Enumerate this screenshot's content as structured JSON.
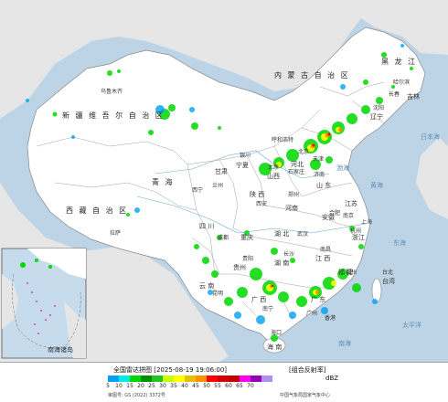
{
  "map": {
    "regions": {
      "heilongjiang": "黑 龙 江",
      "jilin": "吉林",
      "liaoning": "辽宁",
      "neimenggu": "内 蒙 古 自 治 区",
      "xinjiang": "新 疆 维 吾 尔 自 治 区",
      "xizang": "西 藏 自 治 区",
      "qinghai": "青 海",
      "gansu": "甘肃",
      "ningxia": "宁夏",
      "shaanxi": "陕 西",
      "shanxi": "山西",
      "hebei": "河北",
      "shandong": "山 东",
      "henan": "河南",
      "hubei": "湖 北",
      "hunan": "湖 南",
      "sichuan": "四 川",
      "chongqing": "重庆",
      "guizhou": "贵州",
      "yunnan": "云 南",
      "guangxi": "广 西",
      "guangdong": "广 东",
      "jiangxi": "江 西",
      "anhui": "安徽",
      "jiangsu": "江苏",
      "zhejiang": "浙江",
      "fujian": "福 建",
      "taiwan": "台湾",
      "hainan": "海 南"
    },
    "cities": {
      "beijing": "北京",
      "tianjin": "天津",
      "shanghai": "上海",
      "harbin": "哈尔滨",
      "changchun": "长春",
      "shenyang": "沈阳",
      "urumqi": "乌鲁木齐",
      "lhasa": "拉萨",
      "xining": "西宁",
      "lanzhou": "兰州",
      "yinchuan": "银川",
      "hohhot": "呼和浩特",
      "taiyuan": "太原",
      "shijiazhuang": "石家庄",
      "jinan": "济南",
      "zhengzhou": "郑州",
      "xian": "西安",
      "wuhan": "武汉",
      "changsha": "长沙",
      "chengdu": "成都",
      "guiyang": "贵阳",
      "kunming": "昆明",
      "nanning": "南宁",
      "guangzhou": "广州",
      "nanchang": "南昌",
      "hefei": "合肥",
      "nanjing": "南京",
      "hangzhou": "杭州",
      "fuzhou": "福州",
      "haikou": "海口",
      "taibei": "台北",
      "xianggang": "香港"
    },
    "seas": {
      "bohai": "渤海",
      "huanghai": "黄海",
      "donghai": "东海",
      "nanhai": "南海",
      "riben": "日本海",
      "taipingyang": "太平洋"
    },
    "inset": {
      "nanhai_zhudao": "南海诸岛"
    }
  },
  "legend": {
    "title": "全国雷达拼图 [2025-08-19 19:06:00]",
    "product": "[组合反射率]",
    "unit": "dBZ",
    "ticks": [
      "5",
      "10",
      "15",
      "20",
      "25",
      "30",
      "35",
      "40",
      "45",
      "50",
      "55",
      "60",
      "65",
      "70"
    ],
    "colors": [
      "#00a0f6",
      "#00ecec",
      "#00d800",
      "#019000",
      "#22c322",
      "#c8ff00",
      "#ffff00",
      "#e7c000",
      "#ff9000",
      "#ff0000",
      "#d60000",
      "#c00000",
      "#ff00f0",
      "#9600b4",
      "#ad90f0"
    ],
    "approval": "审图号: GS (2022) 3372号",
    "credit": "中国气象局国家气象中心"
  }
}
